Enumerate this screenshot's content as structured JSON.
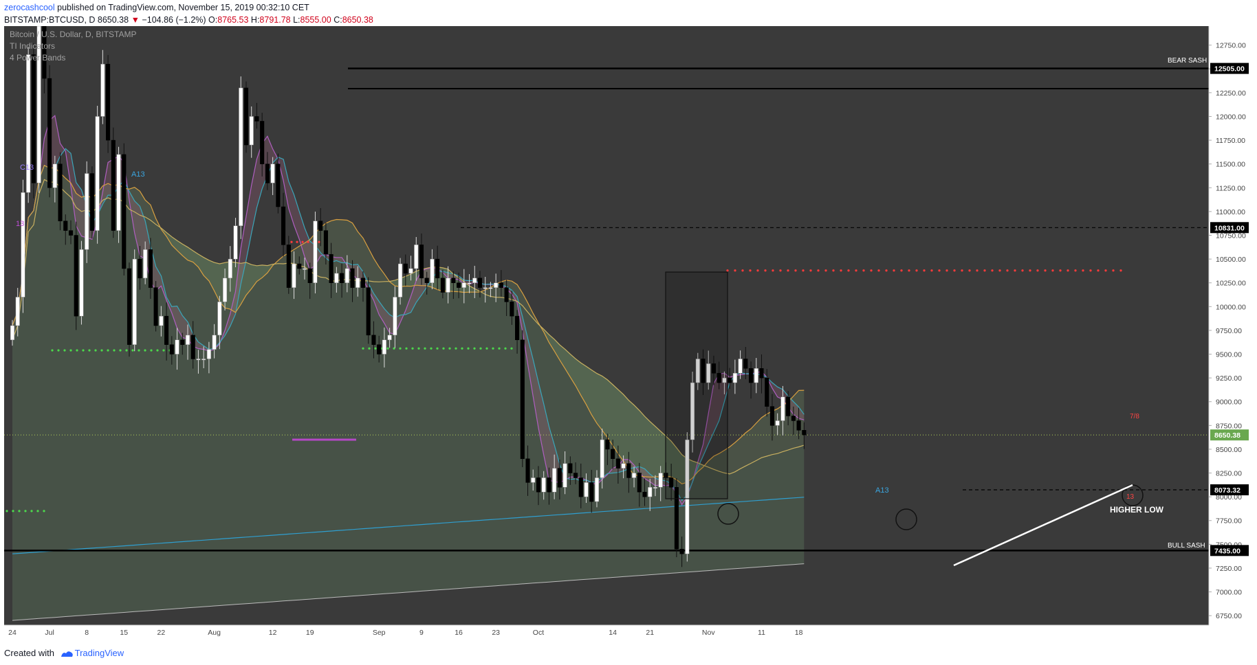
{
  "header": {
    "author": "zerocashcool",
    "published_text": "published on TradingView.com, November 15, 2019 00:32:10 CET",
    "symbol": "BITSTAMP:BTCUSD, D",
    "last": "8650.38",
    "change": "−104.86 (−1.2%)",
    "o_label": "O:",
    "o": "8765.53",
    "h_label": "H:",
    "h": "8791.78",
    "l_label": "L:",
    "l": "8555.00",
    "c_label": "C:",
    "c": "8650.38"
  },
  "legend": [
    "Bitcoin / U.S. Dollar, D, BITSTAMP",
    "TI Indicators",
    "4 Power Bands"
  ],
  "annotations": {
    "bear_sash": "BEAR SASH",
    "bull_sash": "BULL SASH",
    "higher_low": "HIGHER LOW",
    "a13_left": "A13",
    "a13_mid": "A13",
    "c13": "C13",
    "b13": "13",
    "x13": "13",
    "r78": "7/8"
  },
  "footer": {
    "created_with": "Created with",
    "brand": "TradingView"
  },
  "colors": {
    "background": "#3a3a3a",
    "bull_candle": "#ffffff",
    "bear_candle": "#000000",
    "level_tag": "#000000",
    "last_tag": "#6aa84f",
    "red_dots": "#ff3b3b",
    "green_dots": "#4cd94c",
    "band_teal": "#3aa6b9",
    "band_magenta": "#b05fc0",
    "band_orange": "#d9a040",
    "higher_low_line": "#ffffff"
  },
  "chart_data": {
    "type": "candlestick",
    "y_ticks": [
      12750,
      12500,
      12250,
      12000,
      11750,
      11500,
      11250,
      11000,
      10750,
      10500,
      10250,
      10000,
      9750,
      9500,
      9250,
      9000,
      8750,
      8500,
      8250,
      8000,
      7750,
      7500,
      7250,
      7000,
      6750
    ],
    "y_tick_labels": [
      "12750.00",
      "12500.00",
      "12250.00",
      "12000.00",
      "11750.00",
      "11500.00",
      "11250.00",
      "11000.00",
      "10750.00",
      "10500.00",
      "10250.00",
      "10000.00",
      "9750.00",
      "9500.00",
      "9250.00",
      "9000.00",
      "8750.00",
      "8500.00",
      "8250.00",
      "8000.00",
      "7750.00",
      "7500.00",
      "7250.00",
      "7000.00",
      "6750.00"
    ],
    "ylim": [
      6650,
      12950
    ],
    "x_labels": [
      {
        "label": "24",
        "day": 0
      },
      {
        "label": "Jul",
        "day": 7
      },
      {
        "label": "8",
        "day": 14
      },
      {
        "label": "15",
        "day": 21
      },
      {
        "label": "22",
        "day": 28
      },
      {
        "label": "Aug",
        "day": 38
      },
      {
        "label": "12",
        "day": 49
      },
      {
        "label": "19",
        "day": 56
      },
      {
        "label": "Sep",
        "day": 69
      },
      {
        "label": "9",
        "day": 77
      },
      {
        "label": "16",
        "day": 84
      },
      {
        "label": "23",
        "day": 91
      },
      {
        "label": "Oct",
        "day": 99
      },
      {
        "label": "14",
        "day": 113
      },
      {
        "label": "21",
        "day": 120
      },
      {
        "label": "Nov",
        "day": 131
      },
      {
        "label": "11",
        "day": 141
      },
      {
        "label": "18",
        "day": 148
      }
    ],
    "levels": [
      {
        "name": "bear-sash",
        "value": 12505.0,
        "label": "12505.00",
        "style": "solid"
      },
      {
        "name": "upper-box",
        "value": 12330,
        "label": "",
        "style": "solid"
      },
      {
        "name": "resistance",
        "value": 10831.0,
        "label": "10831.00",
        "style": "dashed"
      },
      {
        "name": "last-price",
        "value": 8650.38,
        "label": "8650.38",
        "style": "dotted"
      },
      {
        "name": "support",
        "value": 8073.32,
        "label": "8073.32",
        "style": "dashed"
      },
      {
        "name": "bull-sash",
        "value": 7435.0,
        "label": "7435.00",
        "style": "solid"
      }
    ],
    "closes": [
      9800,
      10100,
      11200,
      12650,
      11300,
      12950,
      12400,
      11250,
      11500,
      10900,
      10800,
      10750,
      9900,
      10600,
      11400,
      10800,
      12000,
      12550,
      11750,
      10800,
      11600,
      10400,
      9600,
      10500,
      10300,
      10600,
      10200,
      9800,
      9900,
      9600,
      9500,
      9650,
      9600,
      9700,
      9450,
      9450,
      9450,
      9550,
      9700,
      10050,
      10300,
      10500,
      10850,
      12300,
      11700,
      12000,
      11950,
      11500,
      11300,
      11500,
      11050,
      10650,
      10200,
      10450,
      10400,
      10400,
      10250,
      10900,
      10800,
      10550,
      10250,
      10350,
      10250,
      10400,
      10200,
      10300,
      10200,
      9700,
      9600,
      9500,
      9650,
      9700,
      10100,
      10450,
      10350,
      10400,
      10650,
      10300,
      10250,
      10500,
      10300,
      10150,
      10300,
      10250,
      10200,
      10250,
      10250,
      10300,
      10200,
      10200,
      10200,
      10250,
      10200,
      10050,
      9900,
      9650,
      8400,
      8150,
      8200,
      8050,
      8200,
      8050,
      8300,
      8100,
      8350,
      8250,
      8200,
      8000,
      8150,
      7950,
      8200,
      8600,
      8500,
      8400,
      8300,
      8350,
      8200,
      8250,
      8050,
      8000,
      8100,
      8100,
      8250,
      8200,
      8100,
      7450,
      7400,
      8600,
      9200,
      9450,
      9200,
      9400,
      9300,
      9200,
      9250,
      9200,
      9300,
      9450,
      9350,
      9200,
      9350,
      9250,
      8950,
      8750,
      8800,
      9050,
      8850,
      8800,
      8700,
      8650
    ],
    "series": [
      {
        "name": "band-teal"
      },
      {
        "name": "band-magenta"
      },
      {
        "name": "band-orange"
      },
      {
        "name": "band-yellow"
      },
      {
        "name": "band-blue"
      },
      {
        "name": "band-grey"
      }
    ]
  }
}
